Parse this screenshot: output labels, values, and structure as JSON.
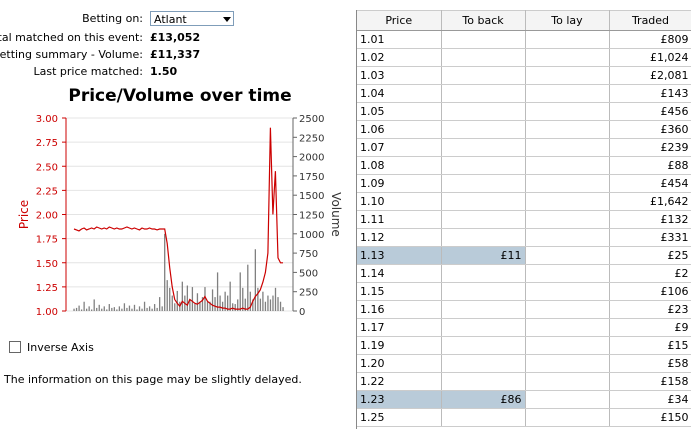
{
  "event_info": {
    "betting_on_label": "Betting on:",
    "betting_on_value": "Atlant",
    "total_matched_label": "Total matched on this event:",
    "total_matched_value": "£13,052",
    "summary_label": "Betting summary - Volume:",
    "summary_value": "£11,337",
    "last_price_label": "Last price matched:",
    "last_price_value": "1.50"
  },
  "chart_data": {
    "type": "line",
    "title": "Price/Volume over time",
    "ylabel": "Price",
    "y2label": "Volume",
    "ylim": [
      1.0,
      3.0
    ],
    "y2lim": [
      0,
      2500
    ],
    "yticks": [
      "1.00",
      "1.25",
      "1.50",
      "1.75",
      "2.00",
      "2.25",
      "2.50",
      "2.75",
      "3.00"
    ],
    "y2ticks": [
      "0",
      "250",
      "500",
      "750",
      "1000",
      "1250",
      "1500",
      "1750",
      "2000",
      "2250",
      "2500"
    ],
    "grid": true,
    "series": [
      {
        "type": "line",
        "color": "#cc0000",
        "values": [
          1.85,
          1.84,
          1.83,
          1.85,
          1.86,
          1.84,
          1.85,
          1.86,
          1.85,
          1.87,
          1.86,
          1.85,
          1.86,
          1.85,
          1.87,
          1.86,
          1.85,
          1.86,
          1.85,
          1.85,
          1.86,
          1.87,
          1.86,
          1.85,
          1.86,
          1.85,
          1.84,
          1.86,
          1.85,
          1.85,
          1.86,
          1.85,
          1.85,
          1.84,
          1.85,
          1.85,
          1.85,
          1.7,
          1.45,
          1.25,
          1.12,
          1.08,
          1.05,
          1.1,
          1.08,
          1.06,
          1.12,
          1.1,
          1.08,
          1.07,
          1.09,
          1.11,
          1.15,
          1.1,
          1.08,
          1.06,
          1.05,
          1.04,
          1.04,
          1.03,
          1.03,
          1.02,
          1.02,
          1.03,
          1.02,
          1.02,
          1.02,
          1.03,
          1.02,
          1.02,
          1.04,
          1.1,
          1.15,
          1.18,
          1.22,
          1.3,
          1.4,
          1.6,
          2.9,
          2.0,
          2.45,
          1.55,
          1.5,
          1.5
        ]
      },
      {
        "type": "bar",
        "color": "#808080",
        "values": [
          30,
          40,
          70,
          20,
          120,
          30,
          60,
          20,
          150,
          40,
          80,
          30,
          60,
          20,
          90,
          40,
          50,
          20,
          60,
          30,
          100,
          40,
          70,
          30,
          80,
          20,
          60,
          30,
          120,
          40,
          60,
          30,
          90,
          40,
          180,
          60,
          1000,
          400,
          300,
          200,
          100,
          260,
          120,
          380,
          200,
          330,
          150,
          310,
          90,
          230,
          120,
          180,
          310,
          120,
          120,
          280,
          180,
          500,
          200,
          120,
          250,
          200,
          380,
          100,
          90,
          150,
          500,
          300,
          160,
          600,
          250,
          150,
          800,
          300,
          160,
          250,
          120,
          200,
          150,
          200,
          300,
          180,
          120,
          50
        ]
      }
    ]
  },
  "inverse_axis_label": "Inverse Axis",
  "delay_note": "The information on this page may be slightly delayed.",
  "table": {
    "headers": [
      "Price",
      "To back",
      "To lay",
      "Traded"
    ],
    "rows": [
      {
        "price": "1.01",
        "back": "",
        "lay": "",
        "traded": "£809"
      },
      {
        "price": "1.02",
        "back": "",
        "lay": "",
        "traded": "£1,024"
      },
      {
        "price": "1.03",
        "back": "",
        "lay": "",
        "traded": "£2,081"
      },
      {
        "price": "1.04",
        "back": "",
        "lay": "",
        "traded": "£143"
      },
      {
        "price": "1.05",
        "back": "",
        "lay": "",
        "traded": "£456"
      },
      {
        "price": "1.06",
        "back": "",
        "lay": "",
        "traded": "£360"
      },
      {
        "price": "1.07",
        "back": "",
        "lay": "",
        "traded": "£239"
      },
      {
        "price": "1.08",
        "back": "",
        "lay": "",
        "traded": "£88"
      },
      {
        "price": "1.09",
        "back": "",
        "lay": "",
        "traded": "£454"
      },
      {
        "price": "1.10",
        "back": "",
        "lay": "",
        "traded": "£1,642"
      },
      {
        "price": "1.11",
        "back": "",
        "lay": "",
        "traded": "£132"
      },
      {
        "price": "1.12",
        "back": "",
        "lay": "",
        "traded": "£331"
      },
      {
        "price": "1.13",
        "back": "£11",
        "lay": "",
        "traded": "£25",
        "highlight": true
      },
      {
        "price": "1.14",
        "back": "",
        "lay": "",
        "traded": "£2"
      },
      {
        "price": "1.15",
        "back": "",
        "lay": "",
        "traded": "£106"
      },
      {
        "price": "1.16",
        "back": "",
        "lay": "",
        "traded": "£23"
      },
      {
        "price": "1.17",
        "back": "",
        "lay": "",
        "traded": "£9"
      },
      {
        "price": "1.19",
        "back": "",
        "lay": "",
        "traded": "£15"
      },
      {
        "price": "1.20",
        "back": "",
        "lay": "",
        "traded": "£58"
      },
      {
        "price": "1.22",
        "back": "",
        "lay": "",
        "traded": "£158"
      },
      {
        "price": "1.23",
        "back": "£86",
        "lay": "",
        "traded": "£34",
        "highlight": true
      },
      {
        "price": "1.25",
        "back": "",
        "lay": "",
        "traded": "£150"
      }
    ]
  }
}
